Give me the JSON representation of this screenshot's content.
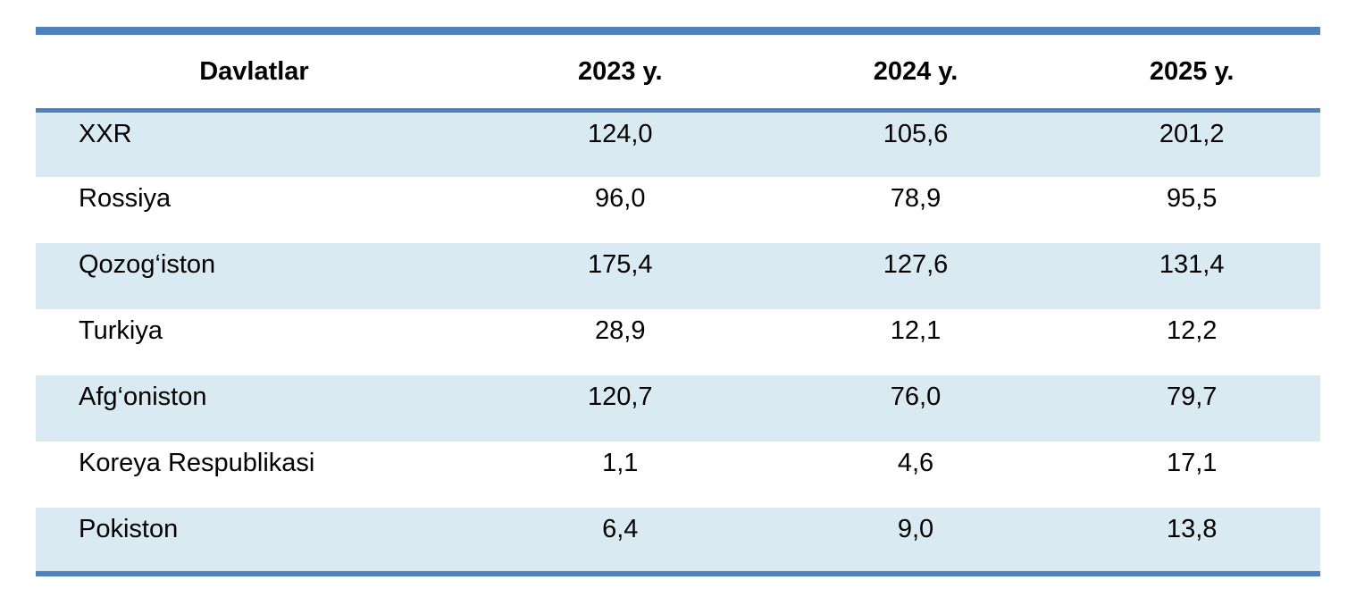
{
  "table": {
    "columns": [
      "Davlatlar",
      "2023 y.",
      "2024 y.",
      "2025 y."
    ],
    "rows": [
      {
        "country": "XXR",
        "values": [
          "124,0",
          "105,6",
          "201,2"
        ]
      },
      {
        "country": "Rossiya",
        "values": [
          "96,0",
          "78,9",
          "95,5"
        ]
      },
      {
        "country": "Qozog‘iston",
        "values": [
          "175,4",
          "127,6",
          "131,4"
        ]
      },
      {
        "country": "Turkiya",
        "values": [
          "28,9",
          "12,1",
          "12,2"
        ]
      },
      {
        "country": "Afg‘oniston",
        "values": [
          "120,7",
          "76,0",
          "79,7"
        ]
      },
      {
        "country": "Koreya Respublikasi",
        "values": [
          "1,1",
          "4,6",
          "17,1"
        ]
      },
      {
        "country": "Pokiston",
        "values": [
          "6,4",
          "9,0",
          "13,8"
        ]
      }
    ]
  },
  "colors": {
    "border_blue": "#4f81bd",
    "row_highlight": "#daeaf3",
    "row_plain": "#ffffff",
    "text": "#000000"
  }
}
